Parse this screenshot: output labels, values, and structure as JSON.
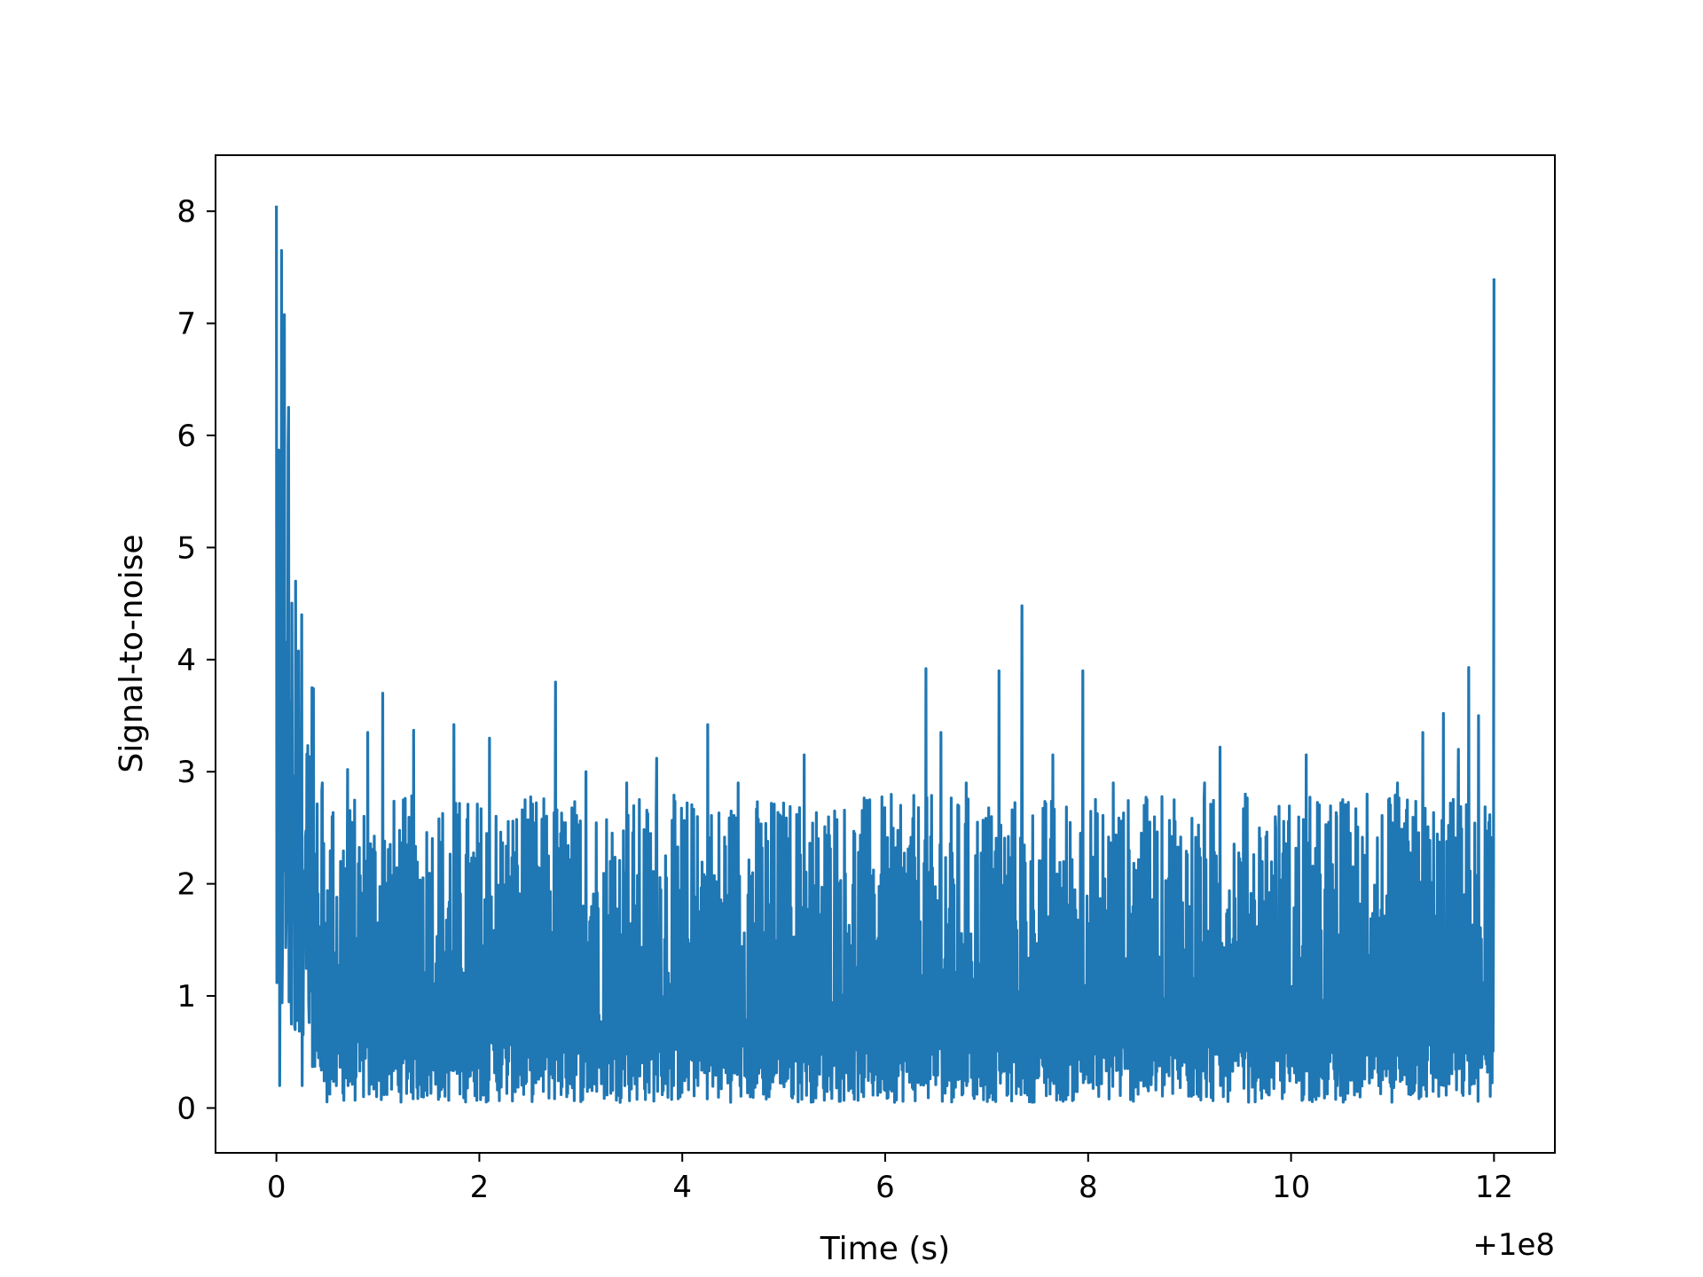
{
  "chart_data": {
    "type": "line",
    "title": "",
    "xlabel": "Time (s)",
    "ylabel": "Signal-to-noise",
    "x_offset_label": "+1e8",
    "xlim": [
      -0.6,
      12.6
    ],
    "ylim": [
      -0.4,
      8.5
    ],
    "xticks": [
      0,
      2,
      4,
      6,
      8,
      10,
      12
    ],
    "xtick_labels": [
      "0",
      "2",
      "4",
      "6",
      "8",
      "10",
      "12"
    ],
    "yticks": [
      0,
      1,
      2,
      3,
      4,
      5,
      6,
      7,
      8
    ],
    "ytick_labels": [
      "0",
      "1",
      "2",
      "3",
      "4",
      "5",
      "6",
      "7",
      "8"
    ],
    "grid": false,
    "legend": "none",
    "line_color": "#1f77b4",
    "series": [
      {
        "x_start": 0.0,
        "x_end": 12.0,
        "noise_baseline_range": [
          0.05,
          2.8
        ],
        "decay_start_values": [
          8.05,
          7.65,
          6.25,
          4.7,
          4.4,
          3.75,
          2.9
        ],
        "x": [
          0.0,
          0.03,
          0.05,
          0.12,
          0.19,
          0.25,
          0.35,
          0.45,
          0.55,
          0.7,
          0.9,
          1.05,
          1.35,
          1.75,
          2.1,
          2.45,
          2.75,
          3.05,
          3.45,
          3.75,
          4.15,
          4.25,
          4.55,
          4.95,
          5.2,
          5.5,
          5.85,
          6.15,
          6.4,
          6.55,
          6.8,
          7.05,
          7.12,
          7.35,
          7.65,
          7.95,
          8.25,
          8.55,
          8.85,
          9.15,
          9.3,
          9.55,
          9.85,
          10.15,
          10.45,
          10.75,
          11.05,
          11.3,
          11.5,
          11.65,
          11.75,
          11.85,
          11.95,
          12.0
        ],
        "y": [
          8.05,
          5.8,
          7.65,
          6.25,
          4.7,
          4.4,
          3.75,
          2.9,
          2.6,
          3.02,
          3.35,
          3.7,
          3.37,
          3.42,
          3.3,
          2.75,
          3.8,
          3.0,
          2.9,
          3.12,
          2.6,
          3.42,
          2.9,
          2.1,
          3.15,
          2.65,
          2.75,
          2.7,
          3.92,
          3.35,
          2.9,
          2.6,
          3.9,
          4.48,
          3.15,
          3.9,
          2.9,
          2.7,
          2.75,
          2.9,
          3.22,
          2.8,
          2.5,
          3.15,
          2.6,
          2.8,
          2.9,
          3.35,
          3.52,
          3.2,
          3.93,
          3.5,
          2.55,
          7.4
        ]
      }
    ]
  }
}
